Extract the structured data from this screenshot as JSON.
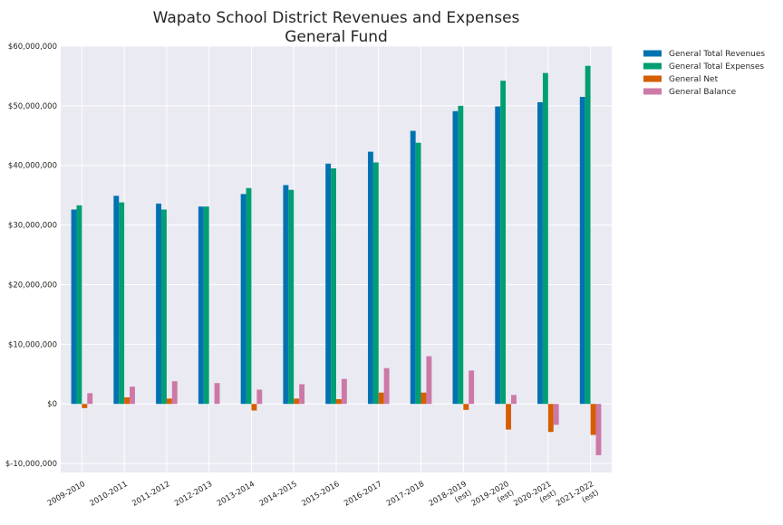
{
  "chart_data": {
    "type": "bar",
    "title": "Wapato School District Revenues and Expenses",
    "subtitle": "General Fund",
    "xlabel": "",
    "ylabel": "",
    "ylim": [
      -11500000,
      60000000
    ],
    "yticks": [
      -10000000,
      0,
      10000000,
      20000000,
      30000000,
      40000000,
      50000000,
      60000000
    ],
    "ytick_labels": [
      "$-10,000,000",
      "$0",
      "$10,000,000",
      "$20,000,000",
      "$30,000,000",
      "$40,000,000",
      "$50,000,000",
      "$60,000,000"
    ],
    "grid": true,
    "legend_position": "outside-top-right",
    "categories": [
      [
        "2009-2010"
      ],
      [
        "2010-2011"
      ],
      [
        "2011-2012"
      ],
      [
        "2012-2013"
      ],
      [
        "2013-2014"
      ],
      [
        "2014-2015"
      ],
      [
        "2015-2016"
      ],
      [
        "2016-2017"
      ],
      [
        "2017-2018"
      ],
      [
        "2018-2019",
        "(est)"
      ],
      [
        "2019-2020",
        "(est)"
      ],
      [
        "2020-2021",
        "(est)"
      ],
      [
        "2021-2022",
        "(est)"
      ]
    ],
    "series": [
      {
        "name": "General Total Revenues",
        "color": "#0072B2",
        "values": [
          32600000,
          34900000,
          33600000,
          33100000,
          35200000,
          36700000,
          40300000,
          42300000,
          45800000,
          49100000,
          49900000,
          50600000,
          51500000
        ]
      },
      {
        "name": "General Total Expenses",
        "color": "#009E73",
        "values": [
          33300000,
          33800000,
          32600000,
          33100000,
          36200000,
          35900000,
          39500000,
          40500000,
          43800000,
          50000000,
          54200000,
          55500000,
          56700000
        ]
      },
      {
        "name": "General Net",
        "color": "#D55E00",
        "values": [
          -700000,
          1100000,
          900000,
          0,
          -1100000,
          900000,
          800000,
          1900000,
          1900000,
          -1000000,
          -4300000,
          -4700000,
          -5200000
        ]
      },
      {
        "name": "General Balance",
        "color": "#CC79A7",
        "values": [
          1800000,
          2900000,
          3800000,
          3500000,
          2400000,
          3300000,
          4200000,
          6000000,
          8000000,
          5600000,
          1500000,
          -3500000,
          -8600000
        ]
      }
    ]
  }
}
